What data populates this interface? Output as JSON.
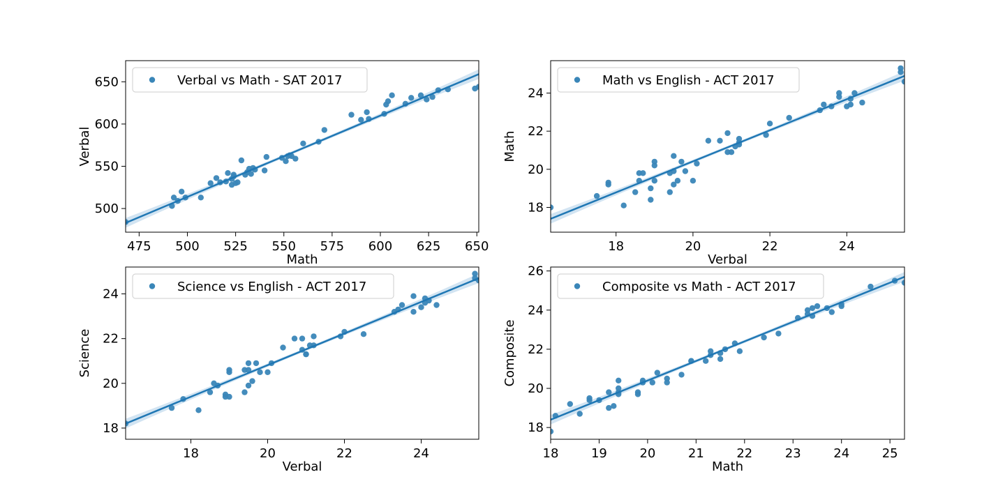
{
  "colors": {
    "points": "#3a86b8",
    "line": "#1f77b4",
    "band": "#c7ddef",
    "frame": "#000000",
    "legend_border": "#cccccc"
  },
  "chart_data": [
    {
      "type": "scatter",
      "legend": "Verbal vs Math - SAT 2017",
      "legend_position": "top-left",
      "xlabel": "Math",
      "ylabel": "Verbal",
      "xlim": [
        468,
        651
      ],
      "ylim": [
        472,
        675
      ],
      "xticks": [
        475,
        500,
        525,
        550,
        575,
        600,
        625,
        650
      ],
      "yticks": [
        500,
        550,
        600,
        650
      ],
      "regression": {
        "x": [
          468,
          651
        ],
        "y": [
          483,
          659
        ]
      },
      "x": [
        468,
        492,
        493,
        495,
        497,
        499,
        507,
        512,
        515,
        517,
        520,
        521,
        523,
        523,
        524,
        524,
        525,
        526,
        528,
        530,
        531,
        532,
        533,
        534,
        535,
        540,
        541,
        549,
        551,
        552,
        553,
        554,
        556,
        560,
        568,
        571,
        585,
        590,
        593,
        594,
        602,
        603,
        604,
        606,
        613,
        616,
        621,
        624,
        627,
        630,
        635,
        649,
        651
      ],
      "y": [
        484,
        503,
        513,
        509,
        520,
        513,
        513,
        530,
        536,
        531,
        532,
        542,
        528,
        535,
        538,
        540,
        530,
        531,
        557,
        540,
        543,
        547,
        541,
        548,
        546,
        545,
        561,
        560,
        556,
        562,
        563,
        562,
        559,
        577,
        579,
        593,
        611,
        605,
        614,
        606,
        612,
        623,
        627,
        634,
        624,
        631,
        634,
        629,
        632,
        640,
        641,
        642,
        644
      ]
    },
    {
      "type": "scatter",
      "legend": "Math vs English - ACT 2017",
      "legend_position": "top-left",
      "xlabel": "Verbal",
      "ylabel": "Math",
      "xlim": [
        16.3,
        25.5
      ],
      "ylim": [
        16.7,
        25.7
      ],
      "xticks": [
        18,
        20,
        22,
        24
      ],
      "yticks": [
        18,
        20,
        22,
        24
      ],
      "regression": {
        "x": [
          16.3,
          25.5
        ],
        "y": [
          17.4,
          24.9
        ]
      },
      "x": [
        16.3,
        17.5,
        17.8,
        17.8,
        18.2,
        18.5,
        18.6,
        18.6,
        18.7,
        18.9,
        18.9,
        19.0,
        19.0,
        19.0,
        19.4,
        19.4,
        19.5,
        19.5,
        19.5,
        19.6,
        19.7,
        19.8,
        20.0,
        20.1,
        20.4,
        20.7,
        20.9,
        20.9,
        21.0,
        21.1,
        21.2,
        21.2,
        21.2,
        21.9,
        22.0,
        22.5,
        23.3,
        23.4,
        23.6,
        23.8,
        23.8,
        24.0,
        24.1,
        24.1,
        24.2,
        24.4,
        25.4,
        25.4,
        25.5
      ],
      "y": [
        18.0,
        18.6,
        19.2,
        19.3,
        18.1,
        18.8,
        19.4,
        19.8,
        19.8,
        18.4,
        19.0,
        19.4,
        20.2,
        20.4,
        18.8,
        19.8,
        19.9,
        19.2,
        20.7,
        19.4,
        20.4,
        19.9,
        19.4,
        20.3,
        21.5,
        21.5,
        21.9,
        20.9,
        20.9,
        21.2,
        21.3,
        21.4,
        21.6,
        21.8,
        22.4,
        22.7,
        23.1,
        23.4,
        23.3,
        23.8,
        24.0,
        23.3,
        23.4,
        23.7,
        24.0,
        23.5,
        25.3,
        25.1,
        24.6
      ]
    },
    {
      "type": "scatter",
      "legend": "Science vs English - ACT 2017",
      "legend_position": "top-left",
      "xlabel": "Verbal",
      "ylabel": "Science",
      "xlim": [
        16.3,
        25.5
      ],
      "ylim": [
        17.5,
        25.2
      ],
      "xticks": [
        18,
        20,
        22,
        24
      ],
      "yticks": [
        18,
        20,
        22,
        24
      ],
      "regression": {
        "x": [
          16.3,
          25.5
        ],
        "y": [
          18.2,
          24.7
        ]
      },
      "x": [
        16.3,
        17.5,
        17.8,
        18.2,
        18.5,
        18.6,
        18.7,
        18.9,
        18.9,
        19.0,
        19.0,
        19.0,
        19.4,
        19.4,
        19.5,
        19.5,
        19.5,
        19.6,
        19.7,
        19.8,
        20.0,
        20.1,
        20.4,
        20.7,
        20.9,
        20.9,
        21.0,
        21.0,
        21.1,
        21.2,
        21.2,
        21.9,
        22.0,
        22.5,
        23.3,
        23.4,
        23.5,
        23.8,
        23.8,
        24.0,
        24.1,
        24.1,
        24.2,
        24.4,
        25.4,
        25.4,
        25.5
      ],
      "y": [
        18.2,
        18.9,
        19.3,
        18.8,
        19.6,
        20.0,
        19.9,
        19.5,
        19.4,
        19.4,
        20.5,
        20.6,
        19.6,
        20.6,
        19.9,
        20.6,
        20.9,
        20.1,
        20.9,
        20.5,
        20.5,
        20.9,
        21.6,
        22.0,
        22.0,
        21.5,
        21.3,
        21.3,
        21.7,
        22.1,
        21.7,
        22.1,
        22.3,
        22.2,
        23.2,
        23.3,
        23.5,
        23.9,
        23.2,
        23.4,
        23.6,
        23.8,
        23.7,
        23.5,
        24.9,
        24.7,
        24.6
      ]
    },
    {
      "type": "scatter",
      "legend": "Composite vs Math - ACT 2017",
      "legend_position": "top-left",
      "xlabel": "Math",
      "ylabel": "Composite",
      "xlim": [
        18,
        25.3
      ],
      "ylim": [
        17.4,
        26.2
      ],
      "xticks": [
        18,
        19,
        20,
        21,
        22,
        23,
        24,
        25
      ],
      "yticks": [
        18,
        20,
        22,
        24,
        26
      ],
      "regression": {
        "x": [
          18,
          25.3
        ],
        "y": [
          18.4,
          25.7
        ]
      },
      "x": [
        18.0,
        18.1,
        18.4,
        18.6,
        18.8,
        18.8,
        19.0,
        19.2,
        19.2,
        19.3,
        19.4,
        19.4,
        19.4,
        19.4,
        19.8,
        19.8,
        19.9,
        19.9,
        20.1,
        20.2,
        20.4,
        20.4,
        20.7,
        20.9,
        20.9,
        21.2,
        21.3,
        21.3,
        21.5,
        21.5,
        21.6,
        21.8,
        21.9,
        22.4,
        22.7,
        23.1,
        23.3,
        23.3,
        23.4,
        23.4,
        23.5,
        23.7,
        23.8,
        24.0,
        24.0,
        24.6,
        25.1,
        25.3
      ],
      "y": [
        17.8,
        18.6,
        19.2,
        18.7,
        19.4,
        19.5,
        19.4,
        19.0,
        19.8,
        19.1,
        19.7,
        19.8,
        20.0,
        20.4,
        19.7,
        19.8,
        20.3,
        20.4,
        20.3,
        20.8,
        20.3,
        20.5,
        20.7,
        21.4,
        21.4,
        21.4,
        21.7,
        21.9,
        21.5,
        21.8,
        22.0,
        22.3,
        21.9,
        22.6,
        22.8,
        23.6,
        23.8,
        24.0,
        23.7,
        24.1,
        24.2,
        24.1,
        23.9,
        24.2,
        24.3,
        25.2,
        25.5,
        25.4
      ]
    }
  ]
}
